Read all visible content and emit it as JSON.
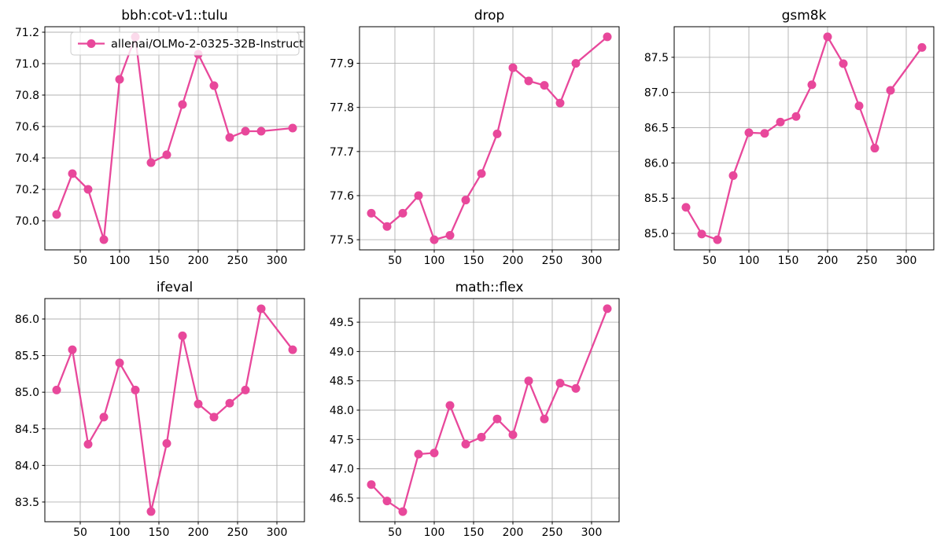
{
  "figure": {
    "background": "#ffffff",
    "line_color": "#e8489b",
    "grid_color": "#b0b0b0",
    "spine_color": "#000000",
    "legend_label": "allenai/OLMo-2-0325-32B-Instruct",
    "legend_border_color": "#cccccc"
  },
  "chart_data": [
    {
      "type": "line",
      "title": "bbh:cot-v1::tulu",
      "grid": true,
      "show_legend": true,
      "legend_position": "upper left",
      "x": [
        20,
        40,
        60,
        80,
        100,
        120,
        140,
        160,
        180,
        200,
        220,
        240,
        260,
        280,
        320
      ],
      "series": [
        {
          "name": "allenai/OLMo-2-0325-32B-Instruct",
          "values": [
            70.04,
            70.3,
            70.2,
            69.88,
            70.9,
            71.17,
            70.37,
            70.42,
            70.74,
            71.06,
            70.86,
            70.53,
            70.57,
            70.57,
            70.59
          ]
        }
      ],
      "xlim": [
        5,
        335
      ],
      "ylim": [
        69.815,
        71.235
      ],
      "xticks": [
        50,
        100,
        150,
        200,
        250,
        300
      ],
      "yticks": [
        70.0,
        70.2,
        70.4,
        70.6,
        70.8,
        71.0,
        71.2
      ]
    },
    {
      "type": "line",
      "title": "drop",
      "grid": true,
      "show_legend": false,
      "x": [
        20,
        40,
        60,
        80,
        100,
        120,
        140,
        160,
        180,
        200,
        220,
        240,
        260,
        280,
        320
      ],
      "series": [
        {
          "name": "allenai/OLMo-2-0325-32B-Instruct",
          "values": [
            77.56,
            77.53,
            77.56,
            77.6,
            77.5,
            77.51,
            77.59,
            77.65,
            77.74,
            77.89,
            77.86,
            77.85,
            77.81,
            77.9,
            77.96
          ]
        }
      ],
      "xlim": [
        5,
        335
      ],
      "ylim": [
        77.477,
        77.983
      ],
      "xticks": [
        50,
        100,
        150,
        200,
        250,
        300
      ],
      "yticks": [
        77.5,
        77.6,
        77.7,
        77.8,
        77.9
      ]
    },
    {
      "type": "line",
      "title": "gsm8k",
      "grid": true,
      "show_legend": false,
      "x": [
        20,
        40,
        60,
        80,
        100,
        120,
        140,
        160,
        180,
        200,
        220,
        240,
        260,
        280,
        320
      ],
      "series": [
        {
          "name": "allenai/OLMo-2-0325-32B-Instruct",
          "values": [
            85.37,
            84.99,
            84.91,
            85.82,
            86.43,
            86.42,
            86.58,
            86.66,
            87.11,
            87.79,
            87.41,
            86.81,
            86.21,
            87.03,
            87.64
          ]
        }
      ],
      "xlim": [
        5,
        335
      ],
      "ylim": [
        84.766,
        87.934
      ],
      "xticks": [
        50,
        100,
        150,
        200,
        250,
        300
      ],
      "yticks": [
        85.0,
        85.5,
        86.0,
        86.5,
        87.0,
        87.5
      ]
    },
    {
      "type": "line",
      "title": "ifeval",
      "grid": true,
      "show_legend": false,
      "x": [
        20,
        40,
        60,
        80,
        100,
        120,
        140,
        160,
        180,
        200,
        220,
        240,
        260,
        280,
        320
      ],
      "series": [
        {
          "name": "allenai/OLMo-2-0325-32B-Instruct",
          "values": [
            85.03,
            85.58,
            84.29,
            84.66,
            85.4,
            85.03,
            83.37,
            84.3,
            85.77,
            84.84,
            84.66,
            84.85,
            85.03,
            86.14,
            85.58
          ]
        }
      ],
      "xlim": [
        5,
        335
      ],
      "ylim": [
        83.231,
        86.279
      ],
      "xticks": [
        50,
        100,
        150,
        200,
        250,
        300
      ],
      "yticks": [
        83.5,
        84.0,
        84.5,
        85.0,
        85.5,
        86.0
      ]
    },
    {
      "type": "line",
      "title": "math::flex",
      "grid": true,
      "show_legend": false,
      "x": [
        20,
        40,
        60,
        80,
        100,
        120,
        140,
        160,
        180,
        200,
        220,
        240,
        260,
        280,
        320
      ],
      "series": [
        {
          "name": "allenai/OLMo-2-0325-32B-Instruct",
          "values": [
            46.73,
            46.45,
            46.27,
            47.25,
            47.27,
            48.08,
            47.42,
            47.54,
            47.85,
            47.58,
            48.5,
            47.85,
            48.46,
            48.37,
            49.73
          ]
        }
      ],
      "xlim": [
        5,
        335
      ],
      "ylim": [
        46.097,
        49.903
      ],
      "xticks": [
        50,
        100,
        150,
        200,
        250,
        300
      ],
      "yticks": [
        46.5,
        47.0,
        47.5,
        48.0,
        48.5,
        49.0,
        49.5
      ]
    }
  ]
}
